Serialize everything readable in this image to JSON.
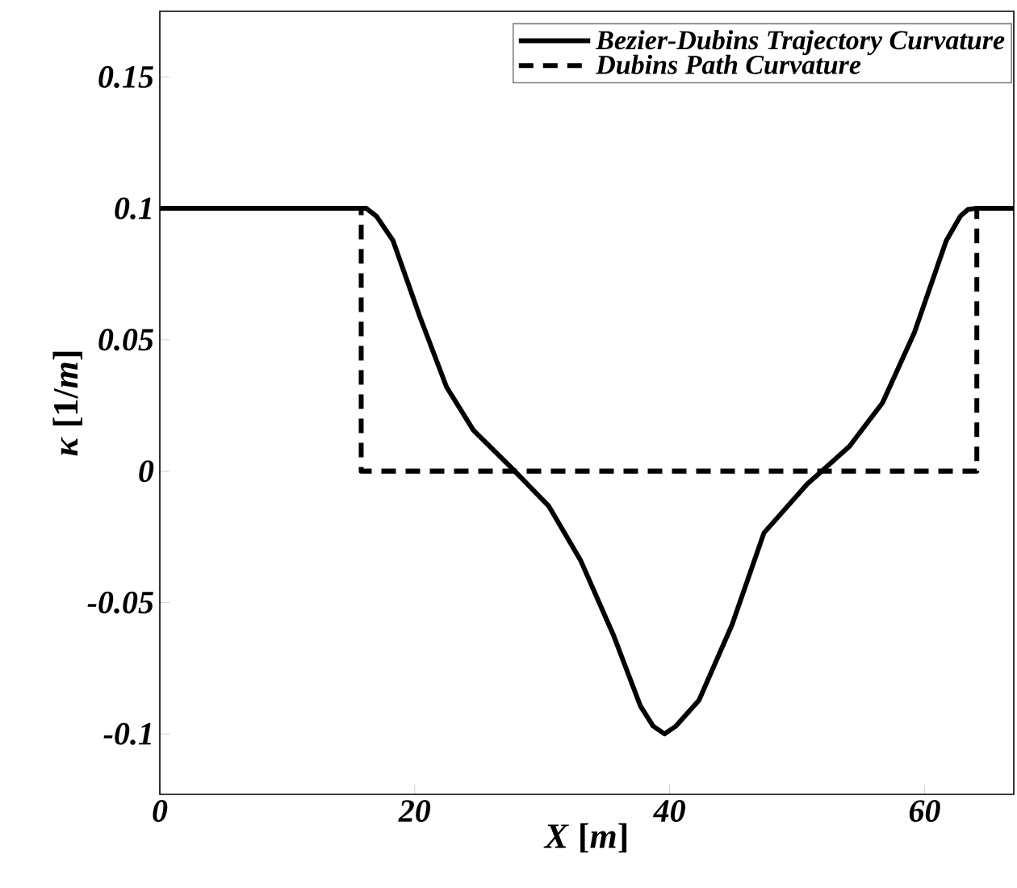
{
  "chart_data": {
    "type": "line",
    "xlabel": "*X* [*m*]",
    "ylabel": "*κ* [1/*m*]",
    "xlim": [
      0,
      67
    ],
    "ylim": [
      -0.123,
      0.175
    ],
    "xticks": [
      0,
      20,
      40,
      60
    ],
    "yticks": [
      -0.1,
      -0.05,
      0,
      0.05,
      0.1,
      0.15
    ],
    "legend": "top right",
    "series": [
      {
        "name": "Bezier-Dubins Trajectory Curvature",
        "color": "#000000",
        "line_style": "solid",
        "x": [
          0,
          16.2,
          17.0,
          18.3,
          20.4,
          22.5,
          24.6,
          27.6,
          30.5,
          33.0,
          35.6,
          37.7,
          38.7,
          39.6,
          40.5,
          42.3,
          44.9,
          47.4,
          50.8,
          54.1,
          56.7,
          59.2,
          61.7,
          62.8,
          63.4,
          64.0,
          67
        ],
        "values": [
          0.1,
          0.1,
          0.097,
          0.0877,
          0.0588,
          0.032,
          0.0156,
          0.0012,
          -0.0132,
          -0.0338,
          -0.0625,
          -0.0893,
          -0.097,
          -0.1,
          -0.097,
          -0.0872,
          -0.0584,
          -0.0235,
          -0.0049,
          0.0094,
          0.026,
          0.0527,
          0.0877,
          0.097,
          0.0996,
          0.1,
          0.1
        ]
      },
      {
        "name": "Dubins Path Curvature",
        "color": "#000000",
        "line_style": "dashed",
        "x": [
          0,
          15.8,
          15.8,
          64.1,
          64.1,
          67
        ],
        "values": [
          0.1,
          0.1,
          0,
          0,
          0.1,
          0.1
        ]
      }
    ]
  }
}
